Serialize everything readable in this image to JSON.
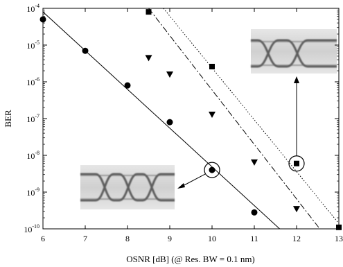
{
  "chart_data": {
    "type": "scatter",
    "title": "",
    "xlabel": "OSNR [dB] (@ Res. BW = 0.1 nm)",
    "ylabel": "BER",
    "xlim": [
      6,
      13
    ],
    "ylim": [
      1e-10,
      0.0001
    ],
    "yscale": "log",
    "grid": false,
    "x_ticks": [
      6,
      7,
      8,
      9,
      10,
      11,
      12,
      13
    ],
    "y_ticks": [
      {
        "value": 1e-10,
        "base": "10",
        "exp": "-10"
      },
      {
        "value": 1e-09,
        "base": "10",
        "exp": "-9"
      },
      {
        "value": 1e-08,
        "base": "10",
        "exp": "-8"
      },
      {
        "value": 1e-07,
        "base": "10",
        "exp": "-7"
      },
      {
        "value": 1e-06,
        "base": "10",
        "exp": "-6"
      },
      {
        "value": 1e-05,
        "base": "10",
        "exp": "-5"
      },
      {
        "value": 0.0001,
        "base": "10",
        "exp": "-4"
      }
    ],
    "series": [
      {
        "marker": "circle",
        "line_style": "solid",
        "points": [
          [
            6,
            5e-05
          ],
          [
            7,
            7e-06
          ],
          [
            8,
            8e-07
          ],
          [
            9,
            8e-08
          ],
          [
            10,
            4e-09
          ],
          [
            11,
            2.8e-10
          ]
        ],
        "fit": [
          [
            6,
            8e-05
          ],
          [
            11.6,
            1e-10
          ]
        ]
      },
      {
        "marker": "triangle-down",
        "line_style": "dashdot",
        "points": [
          [
            8.5,
            4.5e-06
          ],
          [
            9,
            1.6e-06
          ],
          [
            10,
            1.3e-07
          ],
          [
            11,
            6.5e-09
          ],
          [
            12,
            3.5e-10
          ]
        ],
        "fit": [
          [
            8.5,
            0.0001
          ],
          [
            12.55,
            1e-10
          ]
        ]
      },
      {
        "marker": "square",
        "line_style": "dotted",
        "points": [
          [
            8.5,
            8e-05
          ],
          [
            10,
            2.6e-06
          ],
          [
            12,
            6e-09
          ],
          [
            13,
            1.1e-10
          ]
        ],
        "fit": [
          [
            8.85,
            0.0001
          ],
          [
            13,
            1.4e-10
          ]
        ]
      }
    ],
    "annotations": [
      {
        "kind": "eye-diagram-inset",
        "highlight": [
          10,
          4e-09
        ],
        "description": "open eye"
      },
      {
        "kind": "eye-diagram-inset",
        "highlight": [
          12,
          6e-09
        ],
        "description": "open eye"
      }
    ]
  }
}
